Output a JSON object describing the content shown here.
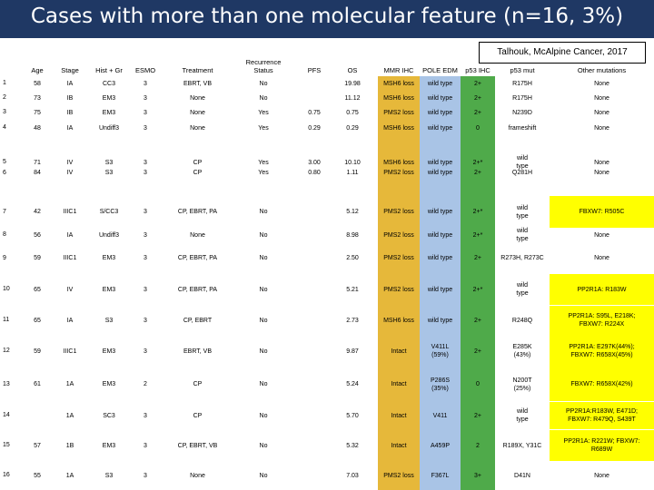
{
  "title": "Cases with more than one molecular feature (n=16, 3%)",
  "citation": "Talhouk, McAlpine Cancer, 2017",
  "colors": {
    "title_bar": "#1f3864",
    "mmr_band": "#e6b83a",
    "pole_band": "#a9c4e6",
    "p53_band": "#4faa4a",
    "other_yellow": "#ffff00"
  },
  "headers": [
    "Age",
    "Stage",
    "Hist + Gr",
    "ESMO",
    "Treatment",
    "Recurrence\nStatus",
    "PFS",
    "OS",
    "MMR IHC",
    "POLE EDM",
    "p53 IHC",
    "p53 mut",
    "Other mutations"
  ],
  "rows": [
    {
      "n": "1",
      "age": "58",
      "stage": "IA",
      "hist": "CC3",
      "esmo": "3",
      "tx": "EBRT, VB",
      "rec": "No",
      "pfs": "",
      "os": "19.98",
      "mmr": "MSH6 loss",
      "pole": "wild type",
      "p53ihc": "2+",
      "p53mut": "R175H",
      "other": "None",
      "hl": false
    },
    {
      "n": "2",
      "age": "73",
      "stage": "IB",
      "hist": "EM3",
      "esmo": "3",
      "tx": "None",
      "rec": "No",
      "pfs": "",
      "os": "11.12",
      "mmr": "MSH6 loss",
      "pole": "wild type",
      "p53ihc": "2+",
      "p53mut": "R175H",
      "other": "None",
      "hl": false
    },
    {
      "n": "3",
      "age": "75",
      "stage": "IB",
      "hist": "EM3",
      "esmo": "3",
      "tx": "None",
      "rec": "Yes",
      "pfs": "0.75",
      "os": "0.75",
      "mmr": "PMS2 loss",
      "pole": "wild type",
      "p53ihc": "2+",
      "p53mut": "N239D",
      "other": "None",
      "hl": false
    },
    {
      "n": "4",
      "age": "48",
      "stage": "IA",
      "hist": "Undiff3",
      "esmo": "3",
      "tx": "None",
      "rec": "Yes",
      "pfs": "0.29",
      "os": "0.29",
      "mmr": "MSH6 loss",
      "pole": "wild type",
      "p53ihc": "0",
      "p53mut": "frameshift",
      "other": "None",
      "hl": false
    },
    {
      "n": "5",
      "age": "71",
      "stage": "IV",
      "hist": "S3",
      "esmo": "3",
      "tx": "CP",
      "rec": "Yes",
      "pfs": "3.00",
      "os": "10.10",
      "mmr": "MSH6 loss",
      "pole": "wild type",
      "p53ihc": "2+*",
      "p53mut": "wild\ntype",
      "other": "None",
      "hl": false
    },
    {
      "n": "6",
      "age": "84",
      "stage": "IV",
      "hist": "S3",
      "esmo": "3",
      "tx": "CP",
      "rec": "Yes",
      "pfs": "0.80",
      "os": "1.11",
      "mmr": "PMS2 loss",
      "pole": "wild type",
      "p53ihc": "2+",
      "p53mut": "Q281H",
      "other": "None",
      "hl": false
    },
    {
      "n": "7",
      "age": "42",
      "stage": "IIIC1",
      "hist": "S/CC3",
      "esmo": "3",
      "tx": "CP, EBRT, PA",
      "rec": "No",
      "pfs": "",
      "os": "5.12",
      "mmr": "PMS2 loss",
      "pole": "wild type",
      "p53ihc": "2+*",
      "p53mut": "wild\ntype",
      "other": "FBXW7: R505C",
      "hl": true
    },
    {
      "n": "8",
      "age": "56",
      "stage": "IA",
      "hist": "Undiff3",
      "esmo": "3",
      "tx": "None",
      "rec": "No",
      "pfs": "",
      "os": "8.98",
      "mmr": "PMS2 loss",
      "pole": "wild type",
      "p53ihc": "2+*",
      "p53mut": "wild\ntype",
      "other": "None",
      "hl": false
    },
    {
      "n": "9",
      "age": "59",
      "stage": "IIIC1",
      "hist": "EM3",
      "esmo": "3",
      "tx": "CP, EBRT, PA",
      "rec": "No",
      "pfs": "",
      "os": "2.50",
      "mmr": "PMS2 loss",
      "pole": "wild type",
      "p53ihc": "2+",
      "p53mut": "R273H, R273C",
      "other": "None",
      "hl": false
    },
    {
      "n": "10",
      "age": "65",
      "stage": "IV",
      "hist": "EM3",
      "esmo": "3",
      "tx": "CP, EBRT, PA",
      "rec": "No",
      "pfs": "",
      "os": "5.21",
      "mmr": "PMS2 loss",
      "pole": "wild type",
      "p53ihc": "2+*",
      "p53mut": "wild\ntype",
      "other": "PP2R1A: R183W",
      "hl": true
    },
    {
      "n": "11",
      "age": "65",
      "stage": "IA",
      "hist": "S3",
      "esmo": "3",
      "tx": "CP, EBRT",
      "rec": "No",
      "pfs": "",
      "os": "2.73",
      "mmr": "MSH6 loss",
      "pole": "wild type",
      "p53ihc": "2+",
      "p53mut": "R248Q",
      "other": "PP2R1A: S95L, E218K;\nFBXW7: R224X",
      "hl": true
    },
    {
      "n": "12",
      "age": "59",
      "stage": "IIIC1",
      "hist": "EM3",
      "esmo": "3",
      "tx": "EBRT, VB",
      "rec": "No",
      "pfs": "",
      "os": "9.87",
      "mmr": "Intact",
      "pole": "V411L\n(59%)",
      "p53ihc": "2+",
      "p53mut": "E285K\n(43%)",
      "other": "PP2R1A: E297K(44%);\nFBXW7: R658X(45%)",
      "hl": true
    },
    {
      "n": "13",
      "age": "61",
      "stage": "1A",
      "hist": "EM3",
      "esmo": "2",
      "tx": "CP",
      "rec": "No",
      "pfs": "",
      "os": "5.24",
      "mmr": "Intact",
      "pole": "P286S\n(35%)",
      "p53ihc": "0",
      "p53mut": "N200T\n(25%)",
      "other": "FBXW7: R658X(42%)",
      "hl": true
    },
    {
      "n": "14",
      "age": "",
      "stage": "1A",
      "hist": "SC3",
      "esmo": "3",
      "tx": "CP",
      "rec": "No",
      "pfs": "",
      "os": "5.70",
      "mmr": "Intact",
      "pole": "V411",
      "p53ihc": "2+",
      "p53mut": "wild\ntype",
      "other": "PP2R1A:R183W, E471D;\nFBXW7: R479Q, S439T",
      "hl": true
    },
    {
      "n": "15",
      "age": "57",
      "stage": "1B",
      "hist": "EM3",
      "esmo": "3",
      "tx": "CP, EBRT, VB",
      "rec": "No",
      "pfs": "",
      "os": "5.32",
      "mmr": "Intact",
      "pole": "A459P",
      "p53ihc": "2",
      "p53mut": "R189X, Y31C",
      "other": "PP2R1A: R221W; FBXW7:\nR689W",
      "hl": true
    },
    {
      "n": "16",
      "age": "55",
      "stage": "1A",
      "hist": "S3",
      "esmo": "3",
      "tx": "None",
      "rec": "No",
      "pfs": "",
      "os": "7.03",
      "mmr": "PMS2 loss",
      "pole": "F367L",
      "p53ihc": "3+",
      "p53mut": "D41N",
      "other": "None",
      "hl": false
    }
  ]
}
